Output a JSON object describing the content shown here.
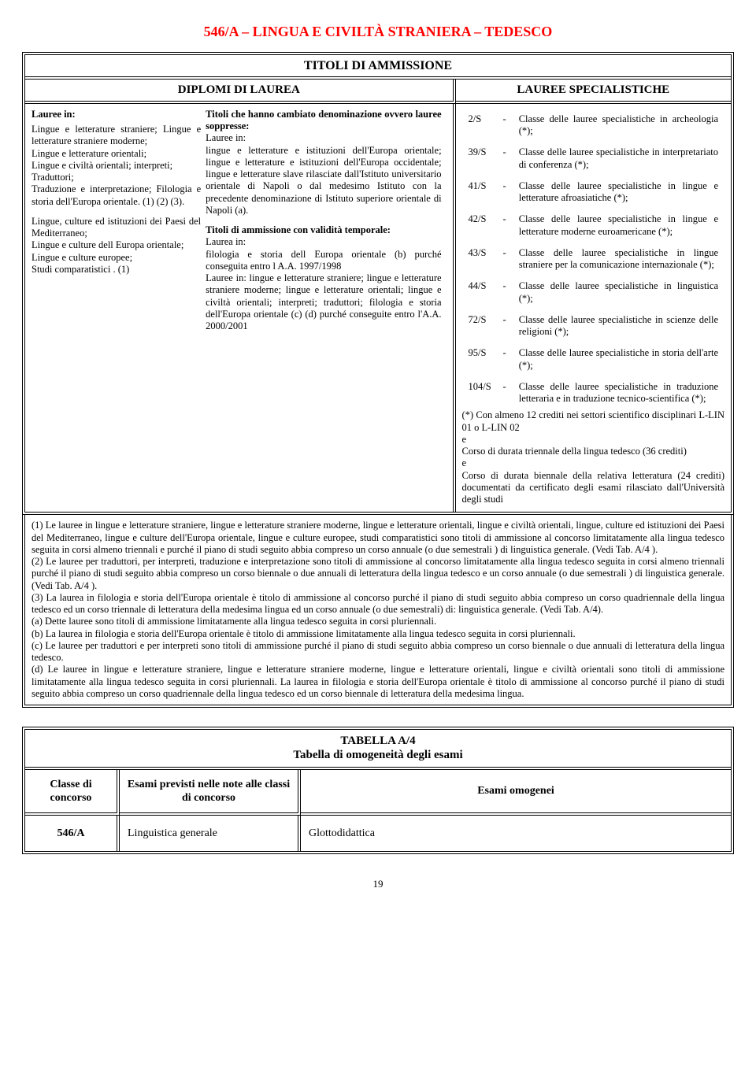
{
  "title": "546/A – LINGUA E CIVILTÀ STRANIERA – TEDESCO",
  "header1": "TITOLI DI AMMISSIONE",
  "header2_left": "DIPLOMI DI LAUREA",
  "header2_right": "LAUREE SPECIALISTICHE",
  "col1": {
    "lauree_in": "Lauree in:",
    "p1": "Lingue e letterature straniere; Lingue e letterature straniere moderne;",
    "p2": "Lingue e letterature orientali;",
    "p3": "Lingue e civiltà orientali; interpreti;",
    "p4": "Traduttori;",
    "p5": "Traduzione e interpretazione; Filologia e storia dell'Europa orientale. (1) (2) (3).",
    "p6": "Lingue, culture ed istituzioni dei Paesi del Mediterraneo;",
    "p7": "Lingue e culture dell Europa orientale;",
    "p8": "Lingue e culture europee;",
    "p9": "Studi comparatistici . (1)"
  },
  "col2": {
    "h1": "Titoli che hanno cambiato denominazione ovvero lauree soppresse:",
    "lauree_in": "Lauree in:",
    "p1": "lingue e letterature e istituzioni dell'Europa orientale; lingue e letterature e istituzioni dell'Europa occidentale; lingue e letterature slave rilasciate dall'Istituto universitario orientale di Napoli o dal medesimo Istituto con la precedente denominazione di Istituto superiore orientale di Napoli (a).",
    "h2": "Titoli di ammissione con validità temporale:",
    "laurea_in": "Laurea in:",
    "p2": "filologia e storia dell Europa orientale (b) purché conseguita entro l A.A. 1997/1998",
    "p3": "Lauree in: lingue e letterature straniere; lingue e letterature straniere moderne; lingue e letterature orientali; lingue e civiltà orientali; interpreti; traduttori; filologia e storia dell'Europa orientale (c) (d) purché conseguite entro l'A.A. 2000/2001"
  },
  "spec_rows": [
    {
      "code": "2/S",
      "txt": "Classe delle lauree specialistiche in archeologia (*);"
    },
    {
      "code": "39/S",
      "txt": "Classe delle lauree specialistiche in interpretariato di conferenza (*);"
    },
    {
      "code": "41/S",
      "txt": "Classe delle lauree specialistiche in lingue e letterature afroasiatiche (*);"
    },
    {
      "code": "42/S",
      "txt": "Classe delle lauree specialistiche in lingue e letterature moderne euroamericane (*);"
    },
    {
      "code": "43/S",
      "txt": "Classe delle lauree specialistiche in lingue straniere per la comunicazione internazionale (*);"
    },
    {
      "code": "44/S",
      "txt": "Classe delle lauree specialistiche in linguistica (*);"
    },
    {
      "code": "72/S",
      "txt": "Classe delle lauree specialistiche in scienze delle religioni (*);"
    },
    {
      "code": "95/S",
      "txt": "Classe delle lauree specialistiche in storia dell'arte (*);"
    },
    {
      "code": "104/S",
      "txt": "Classe delle lauree specialistiche in traduzione letteraria e in traduzione tecnico-scientifica (*);"
    }
  ],
  "spec_tail": {
    "l1": "(*) Con almeno 12 crediti nei settori scientifico disciplinari L-LIN 01 o L-LIN 02",
    "l2": "e",
    "l3": "Corso di durata triennale della lingua tedesco (36 crediti)",
    "l4": "e",
    "l5": "Corso di durata biennale della relativa letteratura (24 crediti) documentati da certificato degli esami rilasciato dall'Università degli studi"
  },
  "notes": {
    "n1": "(1) Le lauree in lingue e letterature straniere, lingue e letterature straniere moderne, lingue e letterature orientali, lingue e civiltà orientali, lingue, culture ed istituzioni dei Paesi del Mediterraneo, lingue e culture dell'Europa orientale, lingue e culture europee, studi comparatistici sono titoli di ammissione al concorso limitatamente alla lingua tedesco seguita in corsi almeno triennali e purché il piano di studi seguito abbia compreso un corso annuale (o due semestrali ) di linguistica generale. (Vedi Tab. A/4 ).",
    "n2": "(2) Le lauree per traduttori, per interpreti, traduzione e interpretazione sono titoli di ammissione al concorso limitatamente alla lingua tedesco seguita in corsi almeno triennali purché il piano di studi seguito abbia compreso un corso biennale o due annuali di letteratura della lingua tedesco e un corso annuale (o due semestrali ) di linguistica generale. (Vedi Tab. A/4 ).",
    "n3": "(3) La laurea in filologia e storia dell'Europa orientale è titolo di ammissione al concorso purché il piano di studi seguito abbia compreso un corso quadriennale della lingua tedesco ed un corso triennale di letteratura della medesima lingua ed un corso annuale (o due semestrali) di: linguistica generale. (Vedi Tab. A/4).",
    "na": "(a) Dette lauree sono titoli di ammissione limitatamente alla lingua tedesco seguita in corsi pluriennali.",
    "nb": "(b) La laurea in filologia e storia dell'Europa orientale è titolo di ammissione limitatamente alla lingua tedesco seguita in corsi pluriennali.",
    "nc": "(c) Le lauree per traduttori e per interpreti sono titoli di ammissione purché il piano di studi seguito abbia compreso un corso biennale o due annuali di letteratura della lingua tedesco.",
    "nd": "(d) Le lauree in lingue e letterature straniere, lingue e letterature straniere moderne, lingue e letterature orientali, lingue e civiltà orientali sono  titoli di ammissione limitatamente alla lingua tedesco seguita in corsi pluriennali. La laurea in filologia e storia dell'Europa orientale è titolo di ammissione al concorso purché il piano di studi seguito abbia compreso un corso quadriennale della lingua tedesco ed un corso biennale di letteratura della medesima lingua."
  },
  "tab4": {
    "title1": "TABELLA A/4",
    "title2": "Tabella di omogeneità degli esami",
    "h1": "Classe di concorso",
    "h2": "Esami previsti nelle note alle classi di concorso",
    "h3": "Esami omogenei",
    "r1c1": "546/A",
    "r1c2": "Linguistica generale",
    "r1c3": "Glottodidattica"
  },
  "page": "19"
}
